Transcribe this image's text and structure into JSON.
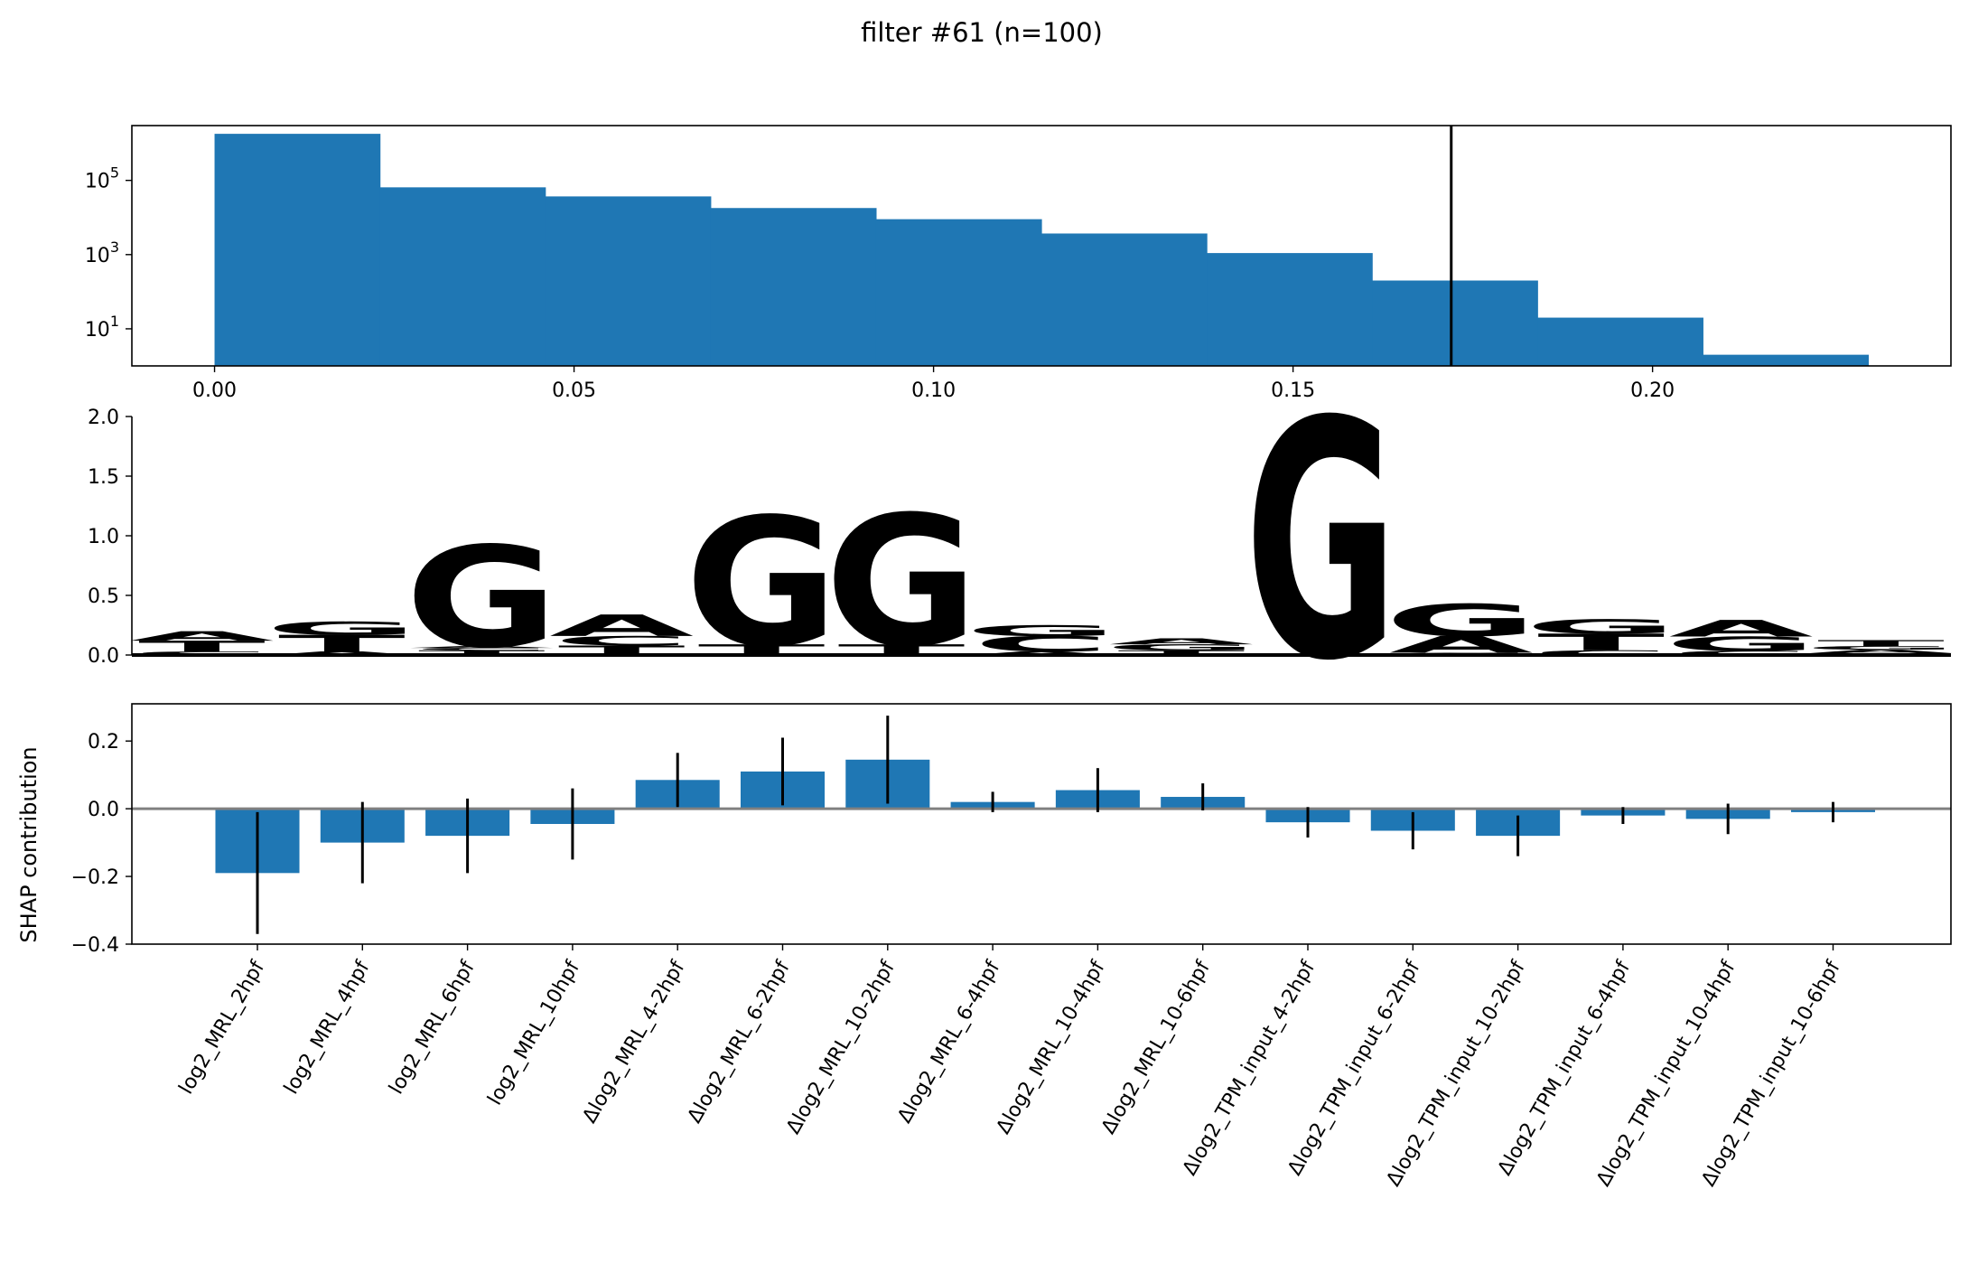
{
  "title": "filter #61 (n=100)",
  "colors": {
    "bar": "#1f77b4",
    "zero_line": "#808080",
    "threshold_line": "#000000",
    "A": "#109648",
    "C": "#255c99",
    "G": "#f7b32b",
    "T": "#d62839"
  },
  "chart_data": [
    {
      "type": "bar",
      "panel": "activation histogram",
      "scale": "log",
      "bin_edges": [
        0.0,
        0.023,
        0.046,
        0.069,
        0.092,
        0.115,
        0.138,
        0.161,
        0.184,
        0.207,
        0.23
      ],
      "counts": [
        1800000,
        65000,
        37000,
        18000,
        9000,
        3700,
        1100,
        200,
        20,
        2
      ],
      "threshold": 0.172,
      "xlim": [
        -0.0115,
        0.2415
      ],
      "ylim": [
        1,
        3000000
      ],
      "xticks": [
        0.0,
        0.05,
        0.1,
        0.15,
        0.2
      ],
      "xtick_labels": [
        "0.00",
        "0.05",
        "0.10",
        "0.15",
        "0.20"
      ],
      "yticks": [
        10,
        1000,
        100000
      ],
      "ytick_labels": [
        {
          "base": "10",
          "exp": "1"
        },
        {
          "base": "10",
          "exp": "3"
        },
        {
          "base": "10",
          "exp": "5"
        }
      ]
    },
    {
      "type": "sequence-logo",
      "panel": "motif logo",
      "ylim": [
        0,
        2.0
      ],
      "yticks": [
        0.0,
        0.5,
        1.0,
        1.5,
        2.0
      ],
      "ytick_labels": [
        "0.0",
        "0.5",
        "1.0",
        "1.5",
        "2.0"
      ],
      "positions": [
        [
          [
            "C",
            0.03
          ],
          [
            "T",
            0.09
          ],
          [
            "A",
            0.08
          ]
        ],
        [
          [
            "A",
            0.03
          ],
          [
            "T",
            0.14
          ],
          [
            "G",
            0.11
          ]
        ],
        [
          [
            "T",
            0.04
          ],
          [
            "C",
            0.02
          ],
          [
            "A",
            0.015
          ],
          [
            "G",
            0.85
          ]
        ],
        [
          [
            "T",
            0.08
          ],
          [
            "C",
            0.08
          ],
          [
            "A",
            0.18
          ]
        ],
        [
          [
            "T",
            0.09
          ],
          [
            "G",
            1.08
          ]
        ],
        [
          [
            "T",
            0.09
          ],
          [
            "G",
            1.1
          ]
        ],
        [
          [
            "A",
            0.03
          ],
          [
            "C",
            0.13
          ],
          [
            "G",
            0.09
          ]
        ],
        [
          [
            "T",
            0.04
          ],
          [
            "G",
            0.05
          ],
          [
            "A",
            0.05
          ]
        ],
        [
          [
            "G",
            2.0
          ]
        ],
        [
          [
            "C",
            0.02
          ],
          [
            "A",
            0.14
          ],
          [
            "G",
            0.27
          ]
        ],
        [
          [
            "C",
            0.04
          ],
          [
            "T",
            0.14
          ],
          [
            "G",
            0.12
          ]
        ],
        [
          [
            "C",
            0.035
          ],
          [
            "G",
            0.12
          ],
          [
            "A",
            0.14
          ]
        ],
        [
          [
            "C",
            0.015
          ],
          [
            "A",
            0.03
          ],
          [
            "G",
            0.03
          ],
          [
            "T",
            0.05
          ]
        ]
      ]
    },
    {
      "type": "bar",
      "panel": "SHAP contributions",
      "ylabel": "SHAP contribution",
      "ylim": [
        -0.4,
        0.31
      ],
      "yticks": [
        -0.4,
        -0.2,
        0.0,
        0.2
      ],
      "ytick_labels": [
        "−0.4",
        "−0.2",
        "0.0",
        "0.2"
      ],
      "categories": [
        "log2_MRL_2hpf",
        "log2_MRL_4hpf",
        "log2_MRL_6hpf",
        "log2_MRL_10hpf",
        "Δlog2_MRL_4-2hpf",
        "Δlog2_MRL_6-2hpf",
        "Δlog2_MRL_10-2hpf",
        "Δlog2_MRL_6-4hpf",
        "Δlog2_MRL_10-4hpf",
        "Δlog2_MRL_10-6hpf",
        "Δlog2_TPM_input_4-2hpf",
        "Δlog2_TPM_input_6-2hpf",
        "Δlog2_TPM_input_10-2hpf",
        "Δlog2_TPM_input_6-4hpf",
        "Δlog2_TPM_input_10-4hpf",
        "Δlog2_TPM_input_10-6hpf"
      ],
      "values": [
        -0.19,
        -0.1,
        -0.08,
        -0.045,
        0.085,
        0.11,
        0.145,
        0.02,
        0.055,
        0.035,
        -0.04,
        -0.065,
        -0.08,
        -0.02,
        -0.03,
        -0.01
      ],
      "errors": [
        0.18,
        0.12,
        0.11,
        0.105,
        0.08,
        0.1,
        0.13,
        0.03,
        0.065,
        0.04,
        0.045,
        0.055,
        0.06,
        0.025,
        0.045,
        0.03
      ]
    }
  ]
}
